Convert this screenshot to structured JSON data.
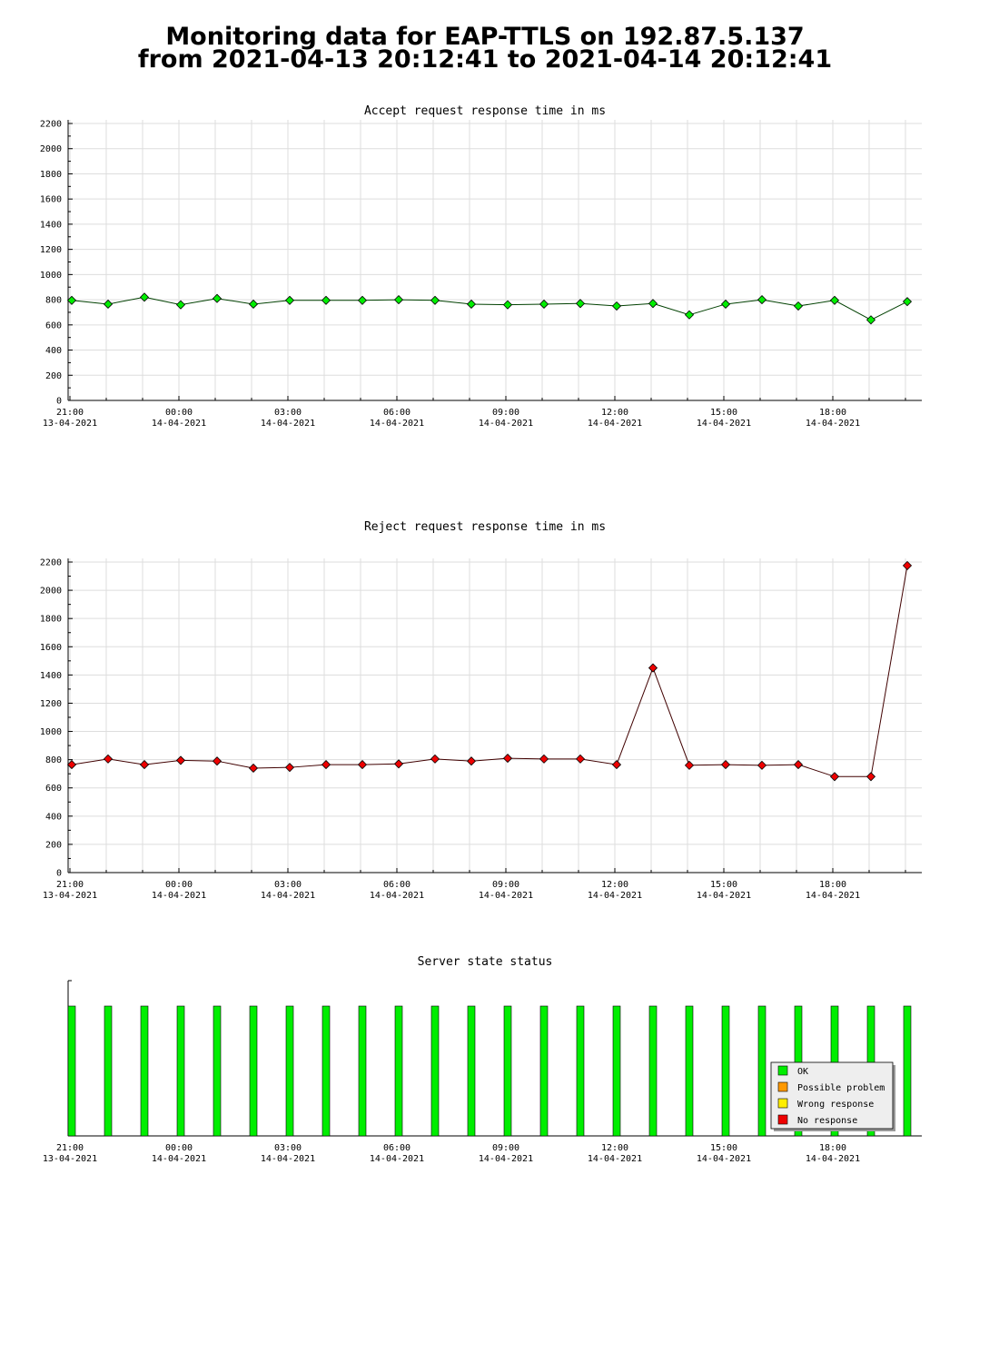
{
  "page_title": [
    "Monitoring data for EAP-TTLS on 192.87.5.137",
    "from 2021-04-13 20:12:41 to 2021-04-14 20:12:41"
  ],
  "chart_data": [
    {
      "type": "line",
      "title": "Accept request response time in ms",
      "title_color": "#006000",
      "x": [
        "2021-04-13 21:03",
        "2021-04-13 22:03",
        "2021-04-13 23:03",
        "2021-04-14 00:03",
        "2021-04-14 01:03",
        "2021-04-14 02:03",
        "2021-04-14 03:03",
        "2021-04-14 04:03",
        "2021-04-14 05:03",
        "2021-04-14 06:03",
        "2021-04-14 07:03",
        "2021-04-14 08:03",
        "2021-04-14 09:03",
        "2021-04-14 10:03",
        "2021-04-14 11:03",
        "2021-04-14 12:03",
        "2021-04-14 13:03",
        "2021-04-14 14:03",
        "2021-04-14 15:03",
        "2021-04-14 16:03",
        "2021-04-14 17:03",
        "2021-04-14 18:03",
        "2021-04-14 19:03",
        "2021-04-14 20:03"
      ],
      "values": [
        795,
        765,
        820,
        760,
        810,
        765,
        795,
        795,
        795,
        800,
        795,
        765,
        760,
        765,
        770,
        750,
        770,
        680,
        765,
        800,
        750,
        795,
        640,
        785
      ],
      "color": "#00ee00",
      "line_color": "#004000",
      "ylim": [
        0,
        2200
      ],
      "yticks": [
        0,
        200,
        400,
        600,
        800,
        1000,
        1200,
        1400,
        1600,
        1800,
        2000,
        2200
      ],
      "yminorticks": [
        100,
        300,
        500,
        700,
        900,
        1100,
        1300,
        1500,
        1700,
        1900,
        2100
      ],
      "xlim": [
        "2021-04-13 20:57",
        "2021-04-14 20:27"
      ],
      "xticks": [
        {
          "value": "2021-04-13 21:00",
          "label": "21:00\n13-04-2021"
        },
        {
          "value": "2021-04-14 00:00",
          "label": "00:00\n14-04-2021"
        },
        {
          "value": "2021-04-14 03:00",
          "label": "03:00\n14-04-2021"
        },
        {
          "value": "2021-04-14 06:00",
          "label": "06:00\n14-04-2021"
        },
        {
          "value": "2021-04-14 09:00",
          "label": "09:00\n14-04-2021"
        },
        {
          "value": "2021-04-14 12:00",
          "label": "12:00\n14-04-2021"
        },
        {
          "value": "2021-04-14 15:00",
          "label": "15:00\n14-04-2021"
        },
        {
          "value": "2021-04-14 18:00",
          "label": "18:00\n14-04-2021"
        }
      ],
      "xminorticks": [
        "2021-04-13 21:00",
        "2021-04-13 22:00",
        "2021-04-13 23:00",
        "2021-04-14 00:00",
        "2021-04-14 01:00",
        "2021-04-14 02:00",
        "2021-04-14 03:00",
        "2021-04-14 04:00",
        "2021-04-14 05:00",
        "2021-04-14 06:00",
        "2021-04-14 07:00",
        "2021-04-14 08:00",
        "2021-04-14 09:00",
        "2021-04-14 10:00",
        "2021-04-14 11:00",
        "2021-04-14 12:00",
        "2021-04-14 13:00",
        "2021-04-14 14:00",
        "2021-04-14 15:00",
        "2021-04-14 16:00",
        "2021-04-14 17:00",
        "2021-04-14 18:00",
        "2021-04-14 19:00",
        "2021-04-14 20:00"
      ],
      "grid": true
    },
    {
      "type": "line",
      "title": "Reject request response time in ms",
      "title_color": "#600000",
      "x": [
        "2021-04-13 21:03",
        "2021-04-13 22:03",
        "2021-04-13 23:03",
        "2021-04-14 00:03",
        "2021-04-14 01:03",
        "2021-04-14 02:03",
        "2021-04-14 03:03",
        "2021-04-14 04:03",
        "2021-04-14 05:03",
        "2021-04-14 06:03",
        "2021-04-14 07:03",
        "2021-04-14 08:03",
        "2021-04-14 09:03",
        "2021-04-14 10:03",
        "2021-04-14 11:03",
        "2021-04-14 12:03",
        "2021-04-14 13:03",
        "2021-04-14 14:03",
        "2021-04-14 15:03",
        "2021-04-14 16:03",
        "2021-04-14 17:03",
        "2021-04-14 18:03",
        "2021-04-14 19:03",
        "2021-04-14 20:03"
      ],
      "values": [
        765,
        805,
        765,
        795,
        790,
        740,
        745,
        765,
        765,
        770,
        805,
        790,
        810,
        805,
        805,
        765,
        1450,
        760,
        765,
        760,
        765,
        680,
        680,
        2175
      ],
      "color": "#ee0000",
      "line_color": "#400000",
      "ylim": [
        0,
        2200
      ],
      "yticks": [
        0,
        200,
        400,
        600,
        800,
        1000,
        1200,
        1400,
        1600,
        1800,
        2000,
        2200
      ],
      "yminorticks": [
        100,
        300,
        500,
        700,
        900,
        1100,
        1300,
        1500,
        1700,
        1900,
        2100
      ],
      "xlim": [
        "2021-04-13 20:57",
        "2021-04-14 20:27"
      ],
      "xticks": [
        {
          "value": "2021-04-13 21:00",
          "label": "21:00\n13-04-2021"
        },
        {
          "value": "2021-04-14 00:00",
          "label": "00:00\n14-04-2021"
        },
        {
          "value": "2021-04-14 03:00",
          "label": "03:00\n14-04-2021"
        },
        {
          "value": "2021-04-14 06:00",
          "label": "06:00\n14-04-2021"
        },
        {
          "value": "2021-04-14 09:00",
          "label": "09:00\n14-04-2021"
        },
        {
          "value": "2021-04-14 12:00",
          "label": "12:00\n14-04-2021"
        },
        {
          "value": "2021-04-14 15:00",
          "label": "15:00\n14-04-2021"
        },
        {
          "value": "2021-04-14 18:00",
          "label": "18:00\n14-04-2021"
        }
      ],
      "xminorticks": [
        "2021-04-13 21:00",
        "2021-04-13 22:00",
        "2021-04-13 23:00",
        "2021-04-14 00:00",
        "2021-04-14 01:00",
        "2021-04-14 02:00",
        "2021-04-14 03:00",
        "2021-04-14 04:00",
        "2021-04-14 05:00",
        "2021-04-14 06:00",
        "2021-04-14 07:00",
        "2021-04-14 08:00",
        "2021-04-14 09:00",
        "2021-04-14 10:00",
        "2021-04-14 11:00",
        "2021-04-14 12:00",
        "2021-04-14 13:00",
        "2021-04-14 14:00",
        "2021-04-14 15:00",
        "2021-04-14 16:00",
        "2021-04-14 17:00",
        "2021-04-14 18:00",
        "2021-04-14 19:00",
        "2021-04-14 20:00"
      ],
      "grid": true
    },
    {
      "type": "status",
      "title": "Server state status",
      "title_color": "#600000",
      "x": [
        "2021-04-13 21:03",
        "2021-04-13 22:03",
        "2021-04-13 23:03",
        "2021-04-14 00:03",
        "2021-04-14 01:03",
        "2021-04-14 02:03",
        "2021-04-14 03:03",
        "2021-04-14 04:03",
        "2021-04-14 05:03",
        "2021-04-14 06:03",
        "2021-04-14 07:03",
        "2021-04-14 08:03",
        "2021-04-14 09:03",
        "2021-04-14 10:03",
        "2021-04-14 11:03",
        "2021-04-14 12:03",
        "2021-04-14 13:03",
        "2021-04-14 14:03",
        "2021-04-14 15:03",
        "2021-04-14 16:03",
        "2021-04-14 17:03",
        "2021-04-14 18:03",
        "2021-04-14 19:03",
        "2021-04-14 20:03"
      ],
      "statuses": [
        "OK",
        "OK",
        "OK",
        "OK",
        "OK",
        "OK",
        "OK",
        "OK",
        "OK",
        "OK",
        "OK",
        "OK",
        "OK",
        "OK",
        "OK",
        "OK",
        "OK",
        "OK",
        "OK",
        "OK",
        "OK",
        "OK",
        "OK",
        "OK"
      ],
      "series": [
        {
          "name": "OK",
          "color": "#00ee00"
        },
        {
          "name": "Possible problem",
          "color": "#ff9900"
        },
        {
          "name": "Wrong response",
          "color": "#ffee00"
        },
        {
          "name": "No response",
          "color": "#ee0000"
        }
      ],
      "legend": "lower right",
      "xlim": [
        "2021-04-13 20:57",
        "2021-04-14 20:27"
      ],
      "xticks": [
        {
          "value": "2021-04-13 21:00",
          "label": "21:00\n13-04-2021"
        },
        {
          "value": "2021-04-14 00:00",
          "label": "00:00\n14-04-2021"
        },
        {
          "value": "2021-04-14 03:00",
          "label": "03:00\n14-04-2021"
        },
        {
          "value": "2021-04-14 06:00",
          "label": "06:00\n14-04-2021"
        },
        {
          "value": "2021-04-14 09:00",
          "label": "09:00\n14-04-2021"
        },
        {
          "value": "2021-04-14 12:00",
          "label": "12:00\n14-04-2021"
        },
        {
          "value": "2021-04-14 15:00",
          "label": "15:00\n14-04-2021"
        },
        {
          "value": "2021-04-14 18:00",
          "label": "18:00\n14-04-2021"
        }
      ],
      "xminorticks": [
        "2021-04-13 21:00",
        "2021-04-13 22:00",
        "2021-04-13 23:00",
        "2021-04-14 00:00",
        "2021-04-14 01:00",
        "2021-04-14 02:00",
        "2021-04-14 03:00",
        "2021-04-14 04:00",
        "2021-04-14 05:00",
        "2021-04-14 06:00",
        "2021-04-14 07:00",
        "2021-04-14 08:00",
        "2021-04-14 09:00",
        "2021-04-14 10:00",
        "2021-04-14 11:00",
        "2021-04-14 12:00",
        "2021-04-14 13:00",
        "2021-04-14 14:00",
        "2021-04-14 15:00",
        "2021-04-14 16:00",
        "2021-04-14 17:00",
        "2021-04-14 18:00",
        "2021-04-14 19:00",
        "2021-04-14 20:00"
      ],
      "grid": false
    }
  ]
}
